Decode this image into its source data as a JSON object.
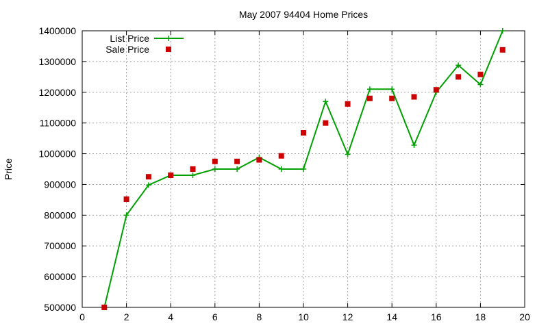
{
  "chart_data": {
    "type": "line",
    "title": "May 2007 94404 Home Prices",
    "xlabel": "",
    "ylabel": "Price",
    "xlim": [
      0,
      20
    ],
    "ylim": [
      500000,
      1400000
    ],
    "x_ticks": [
      0,
      2,
      4,
      6,
      8,
      10,
      12,
      14,
      16,
      18,
      20
    ],
    "y_ticks": [
      500000,
      600000,
      700000,
      800000,
      900000,
      1000000,
      1100000,
      1200000,
      1300000,
      1400000
    ],
    "grid": true,
    "legend_position": "top-left",
    "series": [
      {
        "name": "List Price",
        "style": "lines+points",
        "marker": "plus",
        "color": "#00a000",
        "x": [
          1,
          2,
          3,
          4,
          5,
          6,
          7,
          8,
          9,
          10,
          11,
          12,
          13,
          14,
          15,
          16,
          17,
          18,
          19
        ],
        "values": [
          500000,
          800000,
          898000,
          930000,
          930000,
          950000,
          950000,
          988000,
          950000,
          950000,
          1170000,
          998000,
          1210000,
          1210000,
          1028000,
          1200000,
          1288000,
          1225000,
          1400000
        ]
      },
      {
        "name": "Sale Price",
        "style": "points",
        "marker": "square",
        "color": "#cc0000",
        "x": [
          1,
          2,
          3,
          4,
          5,
          6,
          7,
          8,
          9,
          10,
          11,
          12,
          13,
          14,
          15,
          16,
          17,
          18,
          19
        ],
        "values": [
          500000,
          852000,
          925000,
          930000,
          950000,
          975000,
          975000,
          980000,
          993000,
          1068000,
          1100000,
          1162000,
          1180000,
          1180000,
          1185000,
          1208000,
          1250000,
          1258000,
          1338000
        ]
      }
    ]
  }
}
